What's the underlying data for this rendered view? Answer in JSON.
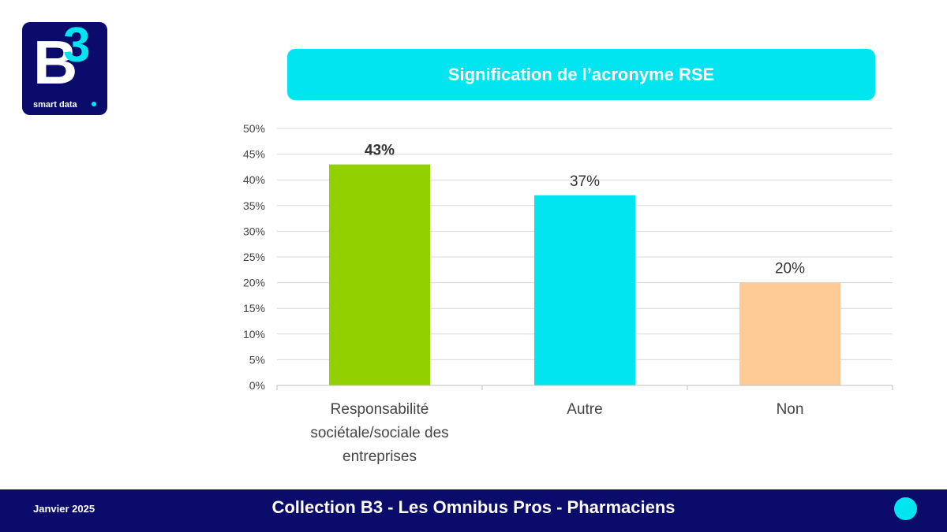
{
  "brand": {
    "logo_letter": "B",
    "logo_superscript": "3",
    "logo_tagline": "smart data",
    "navy": "#0b0b6b",
    "cyan": "#00e5f0"
  },
  "footer": {
    "date": "Janvier 2025",
    "title": "Collection  B3 - Les Omnibus Pros - Pharmaciens"
  },
  "chart_data": {
    "type": "bar",
    "title": "Signification de l’acronyme RSE",
    "categories": [
      "Responsabilité sociétale/sociale des entreprises",
      "Autre",
      "Non"
    ],
    "category_lines": [
      [
        "Responsabilité",
        "sociétale/sociale des",
        "entreprises"
      ],
      [
        "Autre"
      ],
      [
        "Non"
      ]
    ],
    "values": [
      43,
      37,
      20
    ],
    "value_labels": [
      "43%",
      "37%",
      "20%"
    ],
    "colors": [
      "#92d000",
      "#00e5f0",
      "#fecb96"
    ],
    "ylim": [
      0,
      50
    ],
    "yticks": [
      "0%",
      "5%",
      "10%",
      "15%",
      "20%",
      "25%",
      "30%",
      "35%",
      "40%",
      "45%",
      "50%"
    ],
    "grid": true,
    "legend": "none"
  }
}
